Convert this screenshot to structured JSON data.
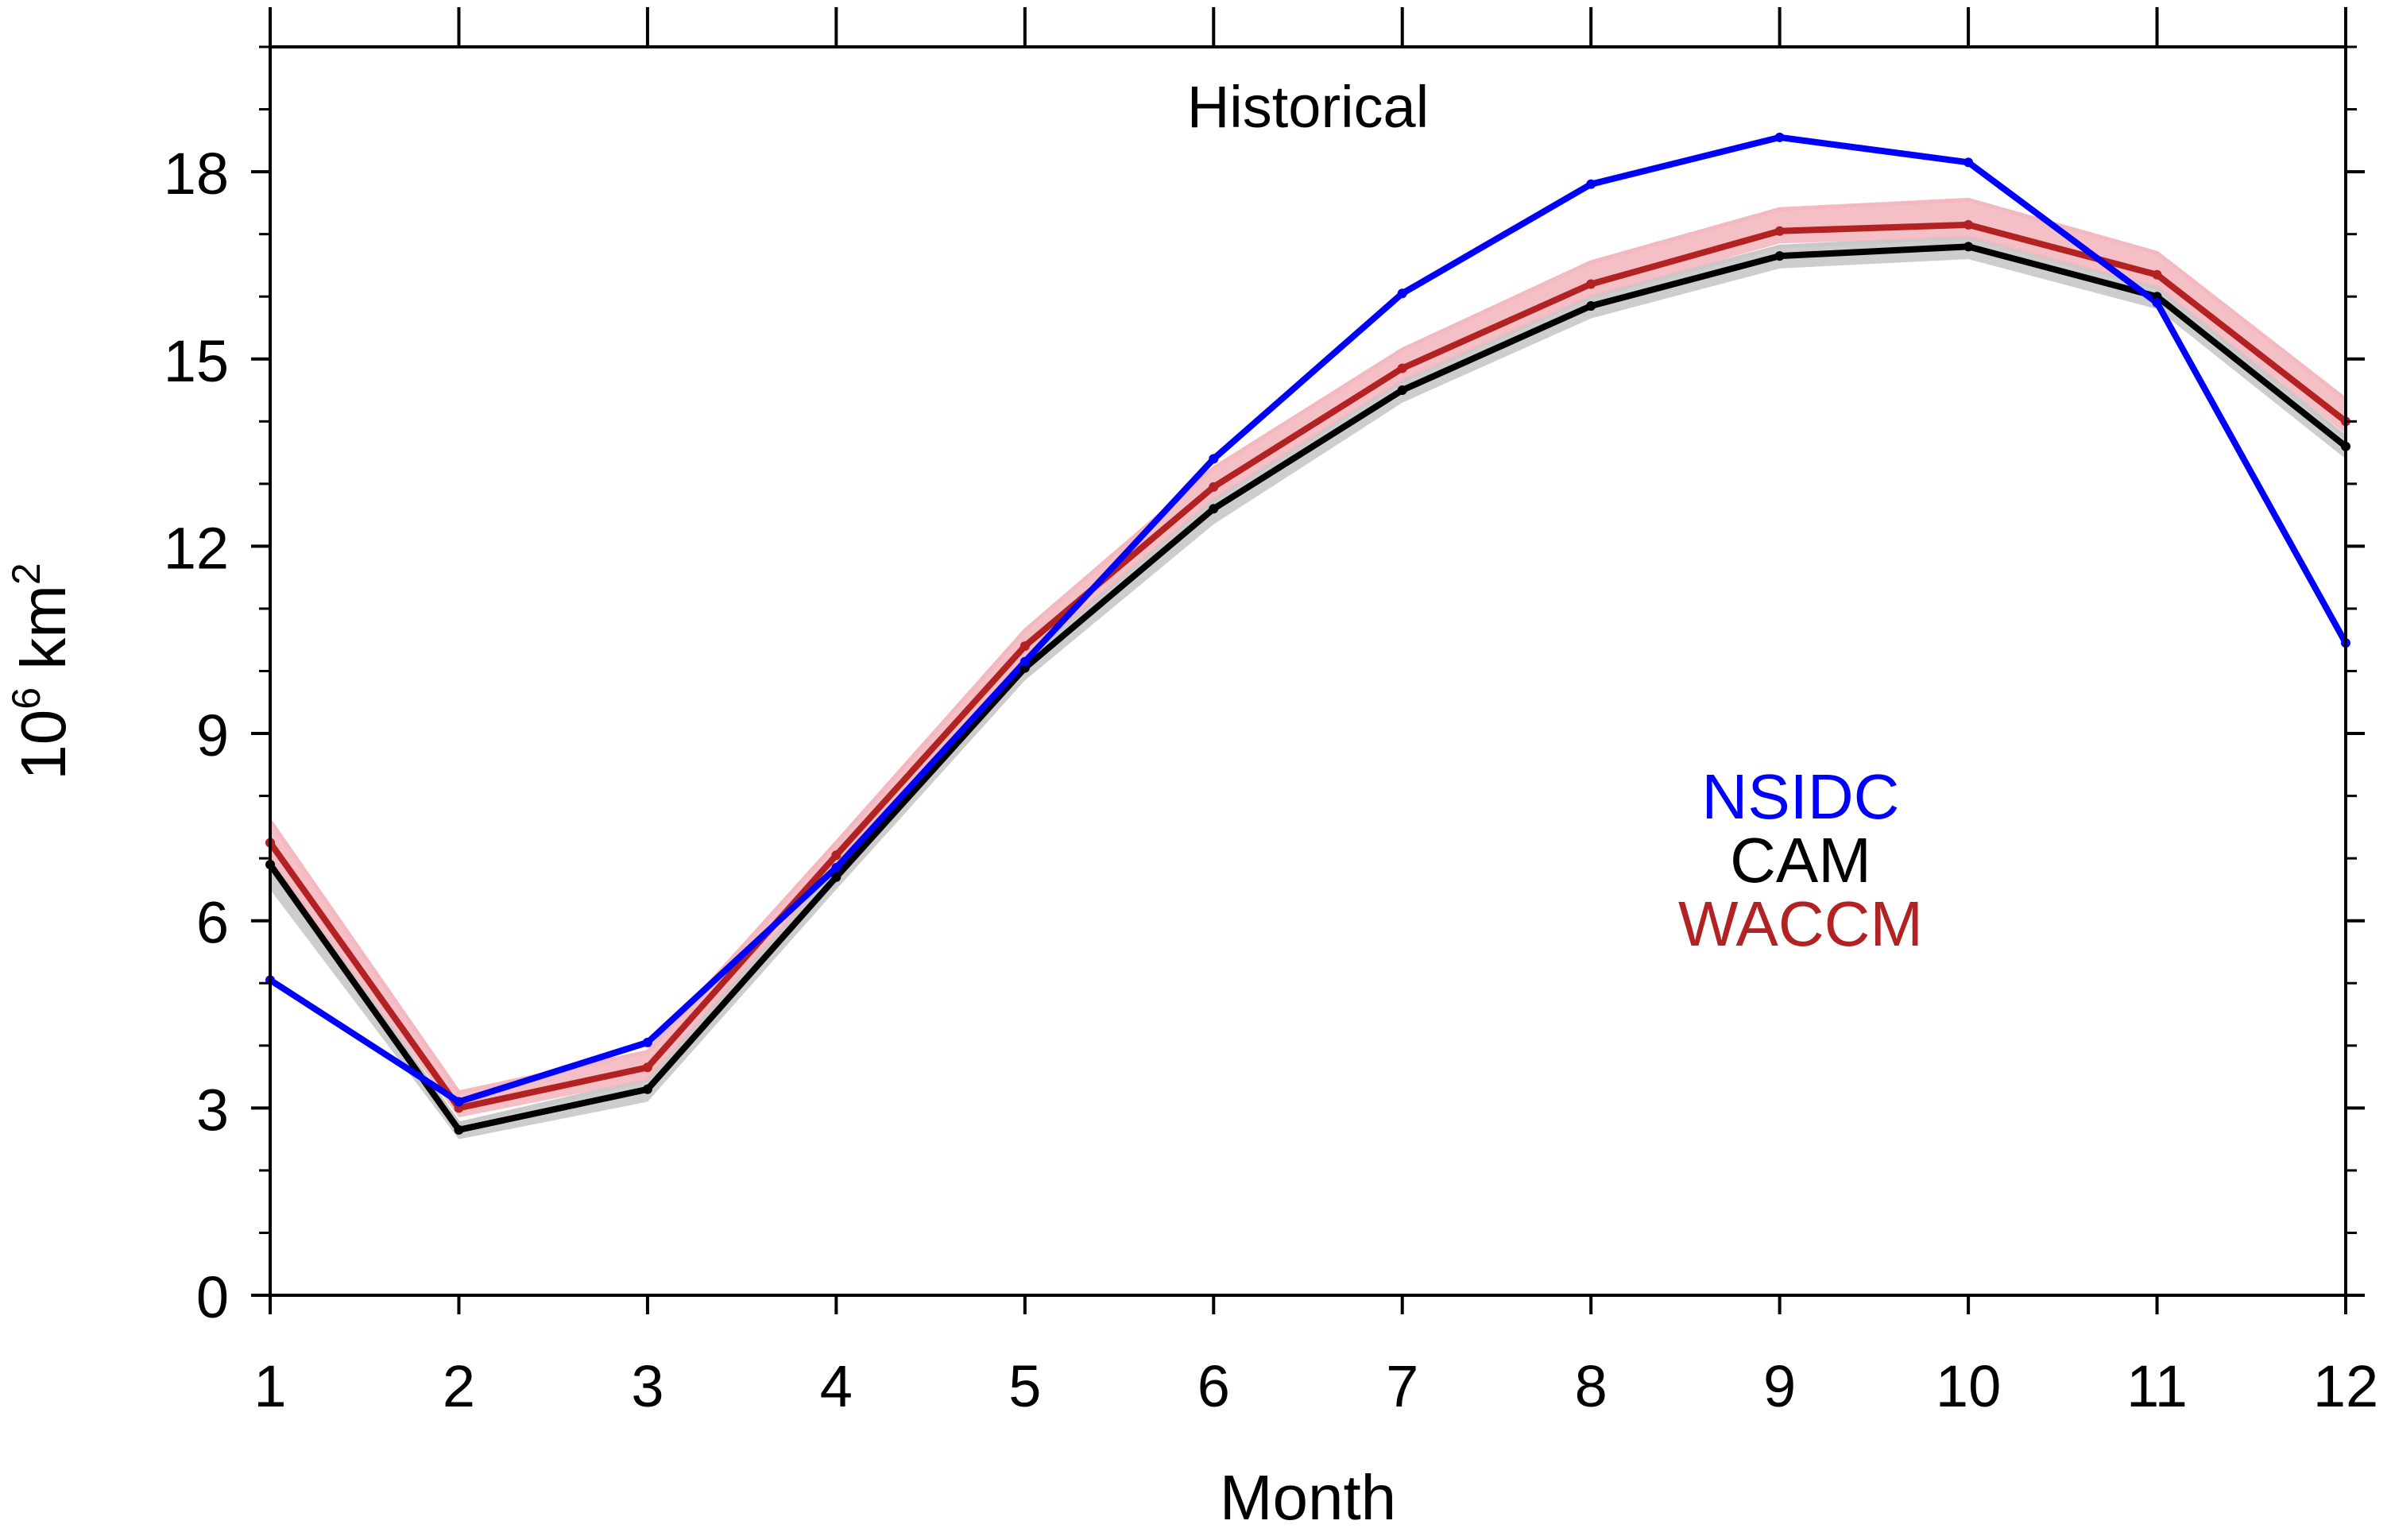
{
  "chart_data": {
    "type": "line",
    "title": "Historical",
    "xlabel": "Month",
    "ylabel_base": "10",
    "ylabel_exp": "6",
    "ylabel_unit": " km",
    "ylabel_unit_exp": "2",
    "x": [
      1,
      2,
      3,
      4,
      5,
      6,
      7,
      8,
      9,
      10,
      11,
      12
    ],
    "x_ticks": [
      "1",
      "2",
      "3",
      "4",
      "5",
      "6",
      "7",
      "8",
      "9",
      "10",
      "11",
      "12"
    ],
    "xlim": [
      1,
      12
    ],
    "ylim": [
      0,
      20
    ],
    "y_ticks": [
      0,
      3,
      6,
      9,
      12,
      15,
      18
    ],
    "y_minor_step": 1,
    "series": [
      {
        "name": "CAM",
        "color": "#000000",
        "band_color": "#c8c8c8",
        "values": [
          6.9,
          2.65,
          3.3,
          6.7,
          10.05,
          12.6,
          14.5,
          15.85,
          16.65,
          16.8,
          16.0,
          13.6
        ],
        "lower": [
          6.5,
          2.5,
          3.1,
          6.5,
          9.85,
          12.35,
          14.3,
          15.65,
          16.45,
          16.6,
          15.8,
          13.4
        ],
        "upper": [
          7.0,
          2.75,
          3.45,
          6.85,
          10.2,
          12.75,
          14.65,
          16.0,
          16.8,
          16.95,
          16.15,
          13.75
        ]
      },
      {
        "name": "WACCM",
        "color": "#b22222",
        "band_color": "#f4b8c0",
        "values": [
          7.25,
          3.0,
          3.65,
          7.05,
          10.4,
          12.95,
          14.85,
          16.2,
          17.05,
          17.15,
          16.35,
          14.0
        ],
        "lower": [
          6.95,
          2.85,
          3.45,
          6.85,
          10.2,
          12.75,
          14.65,
          16.0,
          16.85,
          16.95,
          16.15,
          13.8
        ],
        "upper": [
          7.6,
          3.25,
          3.9,
          7.25,
          10.65,
          13.25,
          15.15,
          16.55,
          17.4,
          17.55,
          16.7,
          14.35
        ]
      },
      {
        "name": "NSIDC",
        "color": "#0000ff",
        "values": [
          5.05,
          3.1,
          4.05,
          6.85,
          10.15,
          13.4,
          16.05,
          17.8,
          18.55,
          18.15,
          15.9,
          10.45
        ]
      }
    ],
    "legend": {
      "placement": "center-right",
      "entries": [
        {
          "label": "NSIDC",
          "color": "#0000ff"
        },
        {
          "label": "CAM",
          "color": "#000000"
        },
        {
          "label": "WACCM",
          "color": "#b22222"
        }
      ]
    }
  }
}
